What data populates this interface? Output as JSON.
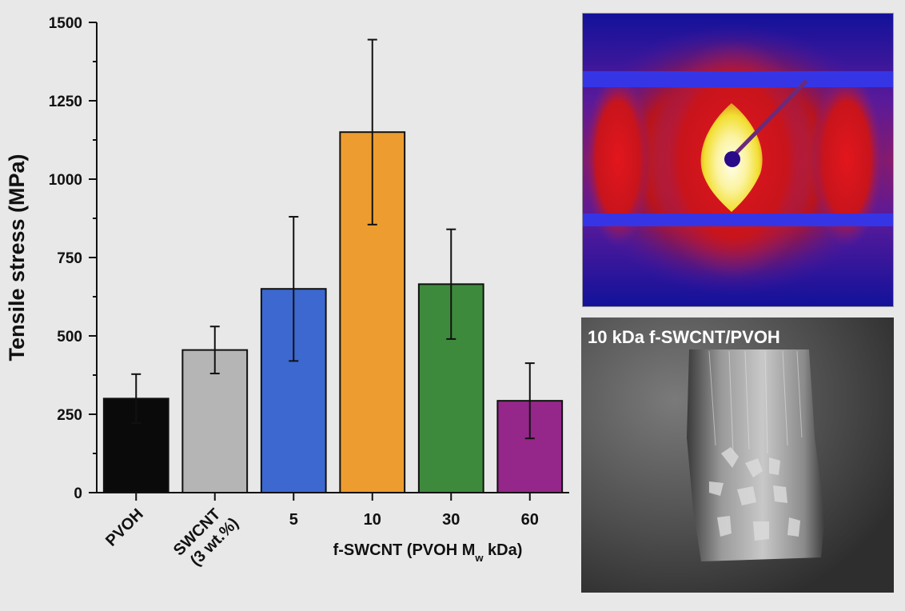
{
  "chart_data": {
    "type": "bar",
    "ylabel": "Tensile stress (MPa)",
    "ylim": [
      0,
      1500
    ],
    "yticks": [
      "0",
      "250",
      "500",
      "750",
      "1000",
      "1250",
      "1500"
    ],
    "categories": [
      {
        "label": "PVOH",
        "label2": ""
      },
      {
        "label": "SWCNT",
        "label2": "(3 wt.%)"
      },
      {
        "label": "5",
        "label2": ""
      },
      {
        "label": "10",
        "label2": ""
      },
      {
        "label": "30",
        "label2": ""
      },
      {
        "label": "60",
        "label2": ""
      }
    ],
    "values": [
      300,
      455,
      650,
      1150,
      665,
      293
    ],
    "errors": [
      78,
      75,
      230,
      295,
      175,
      120
    ],
    "colors": [
      "#0a0a0a",
      "#b5b5b5",
      "#3c68cf",
      "#ed9d2f",
      "#3d8a3d",
      "#95278a"
    ],
    "group_label": {
      "prefix": "f-SWCNT (PVOH M",
      "sub": "w",
      "suffix": " kDa)"
    },
    "grid": false
  },
  "panels": {
    "saxs": {
      "colors": [
        "#12129a",
        "#3535e6",
        "#7a1f8a",
        "#d8141e",
        "#f2e83a",
        "#ffffd2"
      ]
    },
    "sem": {
      "label": "10 kDa f-SWCNT/PVOH"
    }
  }
}
